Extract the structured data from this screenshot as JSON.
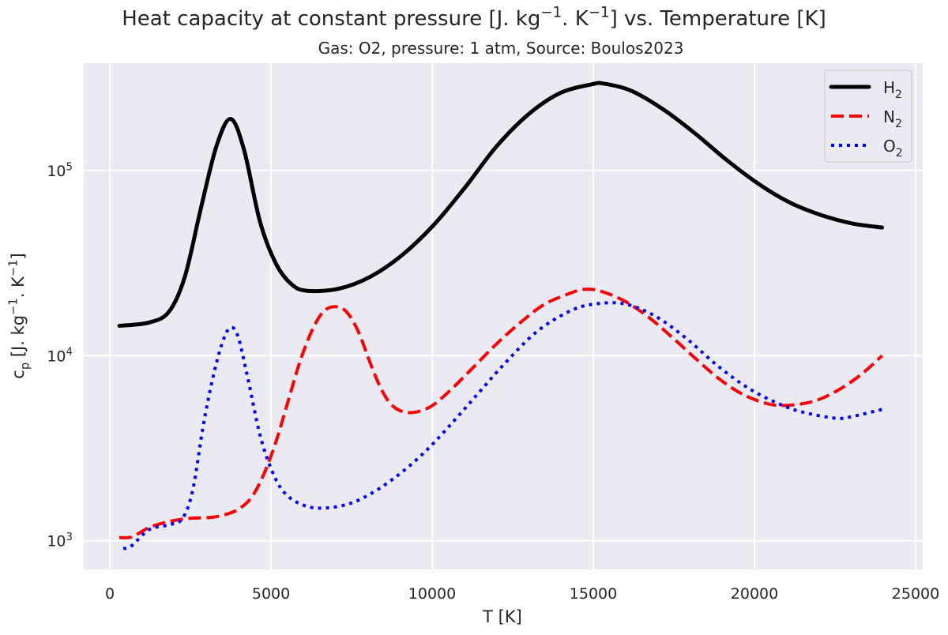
{
  "chart_data": {
    "type": "line",
    "title": "Heat capacity at constant pressure [J. kg^{−1}. K^{−1}] vs. Temperature [K]",
    "subtitle": "Gas: O2, pressure: 1 atm, Source: Boulos2023",
    "xlabel": "T [K]",
    "ylabel": "c_{p} [J. kg^{−1}. K^{−1}]",
    "xlim": [
      -810,
      25220
    ],
    "ylim": [
      700,
      380000
    ],
    "yscale": "log",
    "xticks": [
      0,
      5000,
      10000,
      15000,
      20000,
      25000
    ],
    "xtick_labels": [
      "0",
      "5000",
      "10000",
      "15000",
      "20000",
      "25000"
    ],
    "yticks": [
      1000,
      10000,
      100000
    ],
    "ytick_labels": [
      "10^{3}",
      "10^{4}",
      "10^{5}"
    ],
    "grid": true,
    "background": "#eaeaf2",
    "legend": "top-right",
    "series": [
      {
        "name": "H_{2}",
        "color": "#000000",
        "style": "solid",
        "x": [
          294,
          1225,
          1838,
          2328,
          2818,
          3308,
          3749,
          4165,
          4655,
          5145,
          5635,
          6125,
          7105,
          8085,
          9065,
          10045,
          11025,
          12005,
          12985,
          13965,
          14945,
          15313,
          16170,
          17150,
          18130,
          19110,
          20090,
          21070,
          22050,
          23030,
          23961
        ],
        "y": [
          14500,
          15100,
          17300,
          26700,
          61800,
          135500,
          190000,
          129000,
          53200,
          31600,
          24300,
          22400,
          23000,
          26700,
          34900,
          50700,
          81300,
          135500,
          201000,
          262000,
          292000,
          295000,
          270000,
          215000,
          160000,
          115000,
          85500,
          67500,
          57600,
          51800,
          49200
        ]
      },
      {
        "name": "N_{2}",
        "color": "#ff0000",
        "style": "dashed",
        "x": [
          294,
          686,
          1225,
          1838,
          2450,
          3185,
          3675,
          4043,
          4410,
          4778,
          5145,
          5513,
          5880,
          6248,
          6615,
          6983,
          7350,
          7718,
          8085,
          8453,
          8820,
          9310,
          9923,
          10535,
          11270,
          12005,
          12740,
          13475,
          14210,
          14700,
          15190,
          15925,
          16660,
          17395,
          18130,
          18865,
          19600,
          20335,
          20948,
          21805,
          22540,
          23275,
          23961
        ],
        "y": [
          1040,
          1050,
          1180,
          1270,
          1320,
          1340,
          1400,
          1500,
          1730,
          2290,
          3390,
          5540,
          9060,
          13400,
          17200,
          18400,
          17200,
          13400,
          9060,
          6430,
          5270,
          4920,
          5270,
          6430,
          8630,
          11600,
          15100,
          18900,
          21500,
          22800,
          22400,
          19900,
          16400,
          12800,
          9800,
          7590,
          6230,
          5540,
          5380,
          5650,
          6430,
          7820,
          10000
        ]
      },
      {
        "name": "O_{2}",
        "color": "#0000ff",
        "style": "dotted",
        "x": [
          417,
          686,
          1225,
          1838,
          2254,
          2573,
          2891,
          3185,
          3479,
          3724,
          3969,
          4288,
          4655,
          5023,
          5390,
          5880,
          6493,
          7350,
          8085,
          8820,
          9555,
          10290,
          11270,
          12250,
          13230,
          14210,
          14945,
          15925,
          16905,
          17885,
          18865,
          19845,
          20825,
          21560,
          22540,
          23030,
          23961
        ],
        "y": [
          906,
          943,
          1150,
          1220,
          1320,
          1880,
          4120,
          7450,
          11600,
          14100,
          12800,
          7450,
          3740,
          2400,
          1840,
          1590,
          1500,
          1570,
          1790,
          2180,
          2780,
          3740,
          5820,
          9060,
          13400,
          17200,
          18900,
          19100,
          16400,
          12400,
          8790,
          6620,
          5430,
          4920,
          4590,
          4690,
          5120
        ]
      }
    ]
  }
}
